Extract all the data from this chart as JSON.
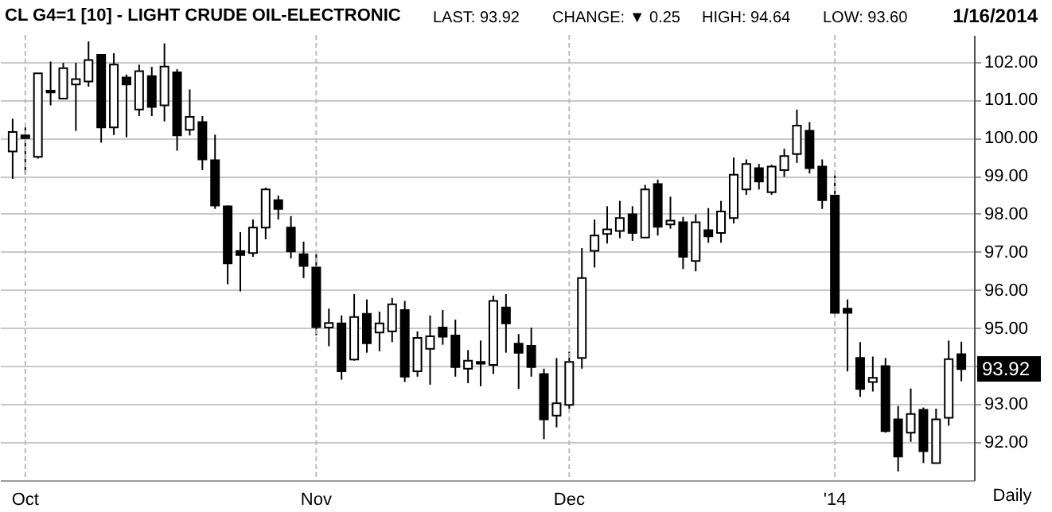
{
  "chart_data": {
    "type": "candlestick",
    "title": "CL G4=1 [10] - LIGHT CRUDE OIL-ELECTRONIC",
    "annotations": [
      "LAST: 93.92",
      "CHANGE: ▼ 0.25",
      "HIGH: 94.64",
      "LOW: 93.60",
      "1/16/2014",
      "Daily",
      "93.92"
    ],
    "categories": [
      null,
      "Oct",
      null,
      null,
      null,
      null,
      null,
      null,
      null,
      null,
      null,
      null,
      null,
      null,
      null,
      null,
      null,
      null,
      null,
      null,
      null,
      null,
      null,
      null,
      "Nov",
      null,
      null,
      null,
      null,
      null,
      null,
      null,
      null,
      null,
      null,
      null,
      null,
      null,
      null,
      null,
      null,
      null,
      null,
      null,
      "Dec",
      null,
      null,
      null,
      null,
      null,
      null,
      null,
      null,
      null,
      null,
      null,
      null,
      null,
      null,
      null,
      null,
      null,
      null,
      null,
      null,
      "'14",
      null,
      null,
      null,
      null,
      null,
      null,
      null,
      null,
      null,
      null
    ],
    "ohlc": [
      [
        99.64,
        100.5,
        98.92,
        100.15
      ],
      [
        100.06,
        100.27,
        99.03,
        99.99
      ],
      [
        99.5,
        101.69,
        99.45,
        101.69
      ],
      [
        101.24,
        102.0,
        100.85,
        101.19
      ],
      [
        101.03,
        101.97,
        101.03,
        101.83
      ],
      [
        101.4,
        101.97,
        100.18,
        101.54
      ],
      [
        101.48,
        102.53,
        101.34,
        102.04
      ],
      [
        102.18,
        102.18,
        99.87,
        100.27
      ],
      [
        100.27,
        102.22,
        100.07,
        101.92
      ],
      [
        101.58,
        101.66,
        100.01,
        101.4
      ],
      [
        100.74,
        101.92,
        100.57,
        101.75
      ],
      [
        101.62,
        101.86,
        100.57,
        100.81
      ],
      [
        100.85,
        102.48,
        100.43,
        101.87
      ],
      [
        101.72,
        101.8,
        99.66,
        100.06
      ],
      [
        100.21,
        101.27,
        100.06,
        100.55
      ],
      [
        100.41,
        100.57,
        99.15,
        99.43
      ],
      [
        99.41,
        100.08,
        98.13,
        98.22
      ],
      [
        98.2,
        98.22,
        96.15,
        96.7
      ],
      [
        97.02,
        97.52,
        95.96,
        96.92
      ],
      [
        96.97,
        97.85,
        96.87,
        97.64
      ],
      [
        97.64,
        98.69,
        97.33,
        98.64
      ],
      [
        98.36,
        98.48,
        97.85,
        98.13
      ],
      [
        97.64,
        97.94,
        96.83,
        97.01
      ],
      [
        96.94,
        97.27,
        96.31,
        96.63
      ],
      [
        96.59,
        96.94,
        94.81,
        95.02
      ],
      [
        95.01,
        95.51,
        94.52,
        95.13
      ],
      [
        95.12,
        95.33,
        93.64,
        93.86
      ],
      [
        94.17,
        95.89,
        94.14,
        95.29
      ],
      [
        95.37,
        95.75,
        94.35,
        94.6
      ],
      [
        94.88,
        95.43,
        94.39,
        95.12
      ],
      [
        94.91,
        95.79,
        94.63,
        95.62
      ],
      [
        95.47,
        95.71,
        93.58,
        93.72
      ],
      [
        93.86,
        94.91,
        93.72,
        94.74
      ],
      [
        94.45,
        95.33,
        93.51,
        94.78
      ],
      [
        95.01,
        95.47,
        94.56,
        94.77
      ],
      [
        94.8,
        95.22,
        93.72,
        93.97
      ],
      [
        93.93,
        94.42,
        93.55,
        94.14
      ],
      [
        94.11,
        94.67,
        93.47,
        94.06
      ],
      [
        94.03,
        95.85,
        93.79,
        95.71
      ],
      [
        95.54,
        95.89,
        94.35,
        95.12
      ],
      [
        94.59,
        94.84,
        93.4,
        94.35
      ],
      [
        94.53,
        95.01,
        93.72,
        93.97
      ],
      [
        93.79,
        93.93,
        92.08,
        92.6
      ],
      [
        92.7,
        94.21,
        92.39,
        93.02
      ],
      [
        92.98,
        94.38,
        92.88,
        94.11
      ],
      [
        94.21,
        97.1,
        93.93,
        96.31
      ],
      [
        97.03,
        97.85,
        96.59,
        97.43
      ],
      [
        97.47,
        98.2,
        97.22,
        97.59
      ],
      [
        97.55,
        98.34,
        97.36,
        97.89
      ],
      [
        97.99,
        98.2,
        97.29,
        97.5
      ],
      [
        97.38,
        98.76,
        97.36,
        98.64
      ],
      [
        98.78,
        98.9,
        97.43,
        97.66
      ],
      [
        97.72,
        98.45,
        97.61,
        97.82
      ],
      [
        97.78,
        97.92,
        96.55,
        96.87
      ],
      [
        96.76,
        97.99,
        96.49,
        97.78
      ],
      [
        97.57,
        98.15,
        97.24,
        97.41
      ],
      [
        97.5,
        98.34,
        97.24,
        98.06
      ],
      [
        97.89,
        99.48,
        97.75,
        99.03
      ],
      [
        98.64,
        99.43,
        98.5,
        99.31
      ],
      [
        99.2,
        99.31,
        98.64,
        98.85
      ],
      [
        98.57,
        99.29,
        98.5,
        99.24
      ],
      [
        99.15,
        99.71,
        98.97,
        99.52
      ],
      [
        99.57,
        100.74,
        99.34,
        100.32
      ],
      [
        100.18,
        100.41,
        99.06,
        99.2
      ],
      [
        99.24,
        99.43,
        98.13,
        98.36
      ],
      [
        98.48,
        99.01,
        95.33,
        95.4
      ],
      [
        95.51,
        95.75,
        93.86,
        95.4
      ],
      [
        94.21,
        94.63,
        93.19,
        93.4
      ],
      [
        93.58,
        94.25,
        93.33,
        93.69
      ],
      [
        94.0,
        94.21,
        92.25,
        92.29
      ],
      [
        92.6,
        92.95,
        91.23,
        91.62
      ],
      [
        92.25,
        93.41,
        92.01,
        92.74
      ],
      [
        92.85,
        92.91,
        91.45,
        91.76
      ],
      [
        91.45,
        92.88,
        91.45,
        92.6
      ],
      [
        92.64,
        94.67,
        92.43,
        94.18
      ],
      [
        94.31,
        94.64,
        93.6,
        93.92
      ]
    ],
    "colors": [
      "#ffffff",
      "#000000",
      "#ffffff",
      "#000000",
      "#ffffff",
      "#ffffff",
      "#ffffff",
      "#000000",
      "#ffffff",
      "#000000",
      "#ffffff",
      "#000000",
      "#ffffff",
      "#000000",
      "#ffffff",
      "#000000",
      "#000000",
      "#000000",
      "#000000",
      "#ffffff",
      "#ffffff",
      "#000000",
      "#000000",
      "#000000",
      "#000000",
      "#ffffff",
      "#000000",
      "#ffffff",
      "#000000",
      "#ffffff",
      "#ffffff",
      "#000000",
      "#ffffff",
      "#ffffff",
      "#000000",
      "#000000",
      "#ffffff",
      "#000000",
      "#ffffff",
      "#000000",
      "#000000",
      "#000000",
      "#000000",
      "#ffffff",
      "#ffffff",
      "#ffffff",
      "#ffffff",
      "#ffffff",
      "#ffffff",
      "#000000",
      "#ffffff",
      "#000000",
      "#ffffff",
      "#000000",
      "#ffffff",
      "#000000",
      "#ffffff",
      "#ffffff",
      "#ffffff",
      "#000000",
      "#ffffff",
      "#ffffff",
      "#ffffff",
      "#000000",
      "#000000",
      "#000000",
      "#000000",
      "#000000",
      "#ffffff",
      "#000000",
      "#000000",
      "#ffffff",
      "#000000",
      "#ffffff",
      "#ffffff",
      "#000000"
    ],
    "ylim": [
      91.0,
      102.7
    ],
    "yticks": [
      {
        "value": 92,
        "label": "92.00"
      },
      {
        "value": 93,
        "label": "93.00"
      },
      {
        "value": 94,
        "label": null
      },
      {
        "value": 95,
        "label": "95.00"
      },
      {
        "value": 96,
        "label": "96.00"
      },
      {
        "value": 97,
        "label": "97.00"
      },
      {
        "value": 98,
        "label": "98.00"
      },
      {
        "value": 99,
        "label": "99.00"
      },
      {
        "value": 100,
        "label": "100.00"
      },
      {
        "value": 101,
        "label": "101.00"
      },
      {
        "value": 102,
        "label": "102.00"
      }
    ],
    "grid": true
  }
}
